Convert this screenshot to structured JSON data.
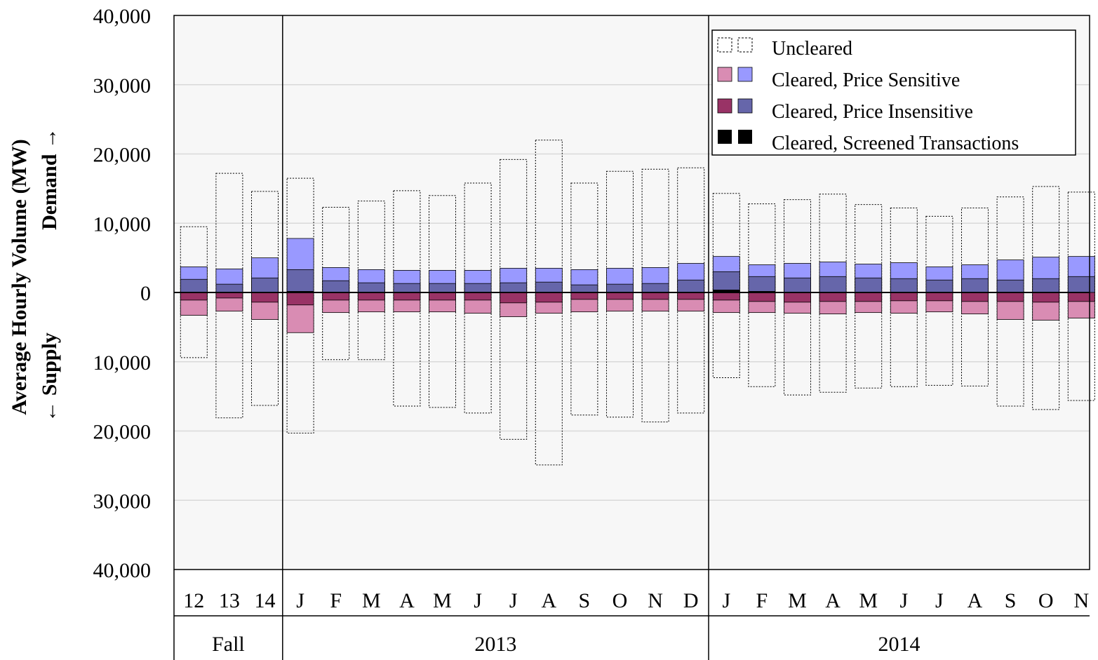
{
  "chart_data": {
    "type": "bar",
    "ylabel_line1": "Average Hourly Volume (MW)",
    "ylabel_demand": "Demand →",
    "ylabel_supply": "← Supply",
    "ylim": [
      -40000,
      40000
    ],
    "y_ticks": [
      40000,
      30000,
      20000,
      10000,
      0,
      -10000,
      -20000,
      -30000,
      -40000
    ],
    "y_tick_labels": [
      "40,000",
      "30,000",
      "20,000",
      "10,000",
      "0",
      "10,000",
      "20,000",
      "30,000",
      "40,000"
    ],
    "grid": true,
    "legend_position": "top-right",
    "categories": [
      "12",
      "13",
      "14",
      "J",
      "F",
      "M",
      "A",
      "M",
      "J",
      "J",
      "A",
      "S",
      "O",
      "N",
      "D",
      "J",
      "F",
      "M",
      "A",
      "M",
      "J",
      "J",
      "A",
      "S",
      "O",
      "N"
    ],
    "groups": [
      {
        "label": "Fall",
        "categories": 3
      },
      {
        "label": "2013",
        "categories": 12
      },
      {
        "label": "2014",
        "categories": 11
      }
    ],
    "series": [
      {
        "name": "Uncleared",
        "demand": [
          9500,
          17200,
          14600,
          16500,
          12300,
          13200,
          14700,
          14000,
          15800,
          19200,
          22000,
          15800,
          17500,
          17800,
          18000,
          14300,
          12800,
          13400,
          14200,
          12700,
          12200,
          11000,
          12200,
          13800,
          15300,
          14500
        ],
        "supply": [
          -9400,
          -18100,
          -16300,
          -20300,
          -9700,
          -9700,
          -16400,
          -16600,
          -17400,
          -21200,
          -24900,
          -17700,
          -18000,
          -18700,
          -17400,
          -12300,
          -13600,
          -14800,
          -14400,
          -13800,
          -13600,
          -13400,
          -13500,
          -16400,
          -16900,
          -15600
        ]
      },
      {
        "name": "Cleared, Price Sensitive",
        "demand": [
          3700,
          3400,
          5000,
          7800,
          3600,
          3300,
          3200,
          3200,
          3200,
          3500,
          3500,
          3300,
          3500,
          3600,
          4200,
          5200,
          4000,
          4200,
          4400,
          4100,
          4300,
          3700,
          4000,
          4700,
          5100,
          5200
        ],
        "supply": [
          -3300,
          -2700,
          -3900,
          -5800,
          -2900,
          -2800,
          -2800,
          -2800,
          -3000,
          -3500,
          -3000,
          -2800,
          -2700,
          -2700,
          -2700,
          -2900,
          -2900,
          -3000,
          -3100,
          -2900,
          -3000,
          -2800,
          -3100,
          -3900,
          -4000,
          -3700
        ]
      },
      {
        "name": "Cleared, Price Insensitive",
        "demand": [
          1900,
          1200,
          2100,
          3300,
          1700,
          1400,
          1300,
          1300,
          1300,
          1400,
          1500,
          1100,
          1200,
          1300,
          1800,
          3000,
          2300,
          2100,
          2300,
          2100,
          2000,
          1800,
          2000,
          1800,
          2000,
          2300
        ],
        "supply": [
          -1100,
          -800,
          -1400,
          -1800,
          -1100,
          -1100,
          -1100,
          -1100,
          -1100,
          -1500,
          -1400,
          -1000,
          -1000,
          -1000,
          -1000,
          -1100,
          -1300,
          -1400,
          -1300,
          -1300,
          -1200,
          -1200,
          -1300,
          -1300,
          -1400,
          -1300
        ]
      },
      {
        "name": "Cleared, Screened Transactions",
        "demand": [
          0,
          0,
          0,
          200,
          0,
          0,
          0,
          0,
          0,
          0,
          0,
          0,
          0,
          0,
          0,
          400,
          200,
          100,
          100,
          100,
          0,
          0,
          0,
          0,
          0,
          0
        ],
        "supply": [
          0,
          0,
          0,
          -100,
          0,
          0,
          0,
          0,
          0,
          0,
          0,
          0,
          0,
          0,
          0,
          -100,
          -100,
          -100,
          -100,
          0,
          0,
          0,
          0,
          0,
          0,
          0
        ]
      }
    ]
  },
  "colors": {
    "demand_price_sensitive": "#9999ff",
    "demand_price_insensitive": "#6666aa",
    "supply_price_sensitive": "#d98cb3",
    "supply_price_insensitive": "#993366",
    "screened": "#000000",
    "grid": "#d9d9d9",
    "plot_bg": "#f7f7f7"
  }
}
